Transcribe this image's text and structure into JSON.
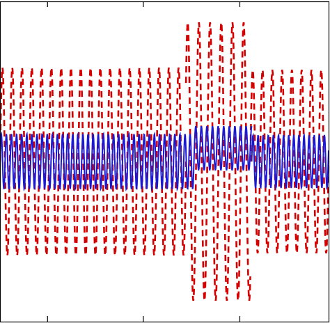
{
  "chart_data": {
    "type": "line",
    "title": "",
    "xlabel": "",
    "ylabel": "",
    "grid": false,
    "legend": "none",
    "xlim": [
      0,
      470
    ],
    "ylim": [
      -1.45,
      1.45
    ],
    "x_ticks": [
      68,
      205,
      343
    ],
    "series": [
      {
        "name": "",
        "style": "dashed",
        "color": "#d40000",
        "segment_1": {
          "x_range": [
            0,
            266
          ],
          "amplitude": 0.85,
          "period": 14,
          "phase": 0.0,
          "offset": 0.0
        },
        "segment_2": {
          "x_range": [
            266,
            358
          ],
          "amplitude": 1.26,
          "period": 16,
          "phase": 0.6,
          "offset": 0.0
        },
        "segment_3": {
          "x_range": [
            358,
            470
          ],
          "amplitude": 0.83,
          "period": 14,
          "phase": 0.0,
          "offset": 0.0
        }
      },
      {
        "name": "",
        "style": "solid",
        "color": "#1a1ad4",
        "segment_1": {
          "x_range": [
            0,
            278
          ],
          "amplitude": 0.25,
          "period": 7.3,
          "phase": 0.0,
          "offset": 0.0
        },
        "segment_2": {
          "x_range": [
            278,
            360
          ],
          "amplitude": 0.2,
          "period": 8.0,
          "phase": 0.0,
          "offset": 0.12
        },
        "segment_3": {
          "x_range": [
            360,
            470
          ],
          "amplitude": 0.24,
          "period": 7.3,
          "phase": 0.0,
          "offset": 0.0
        }
      }
    ]
  }
}
